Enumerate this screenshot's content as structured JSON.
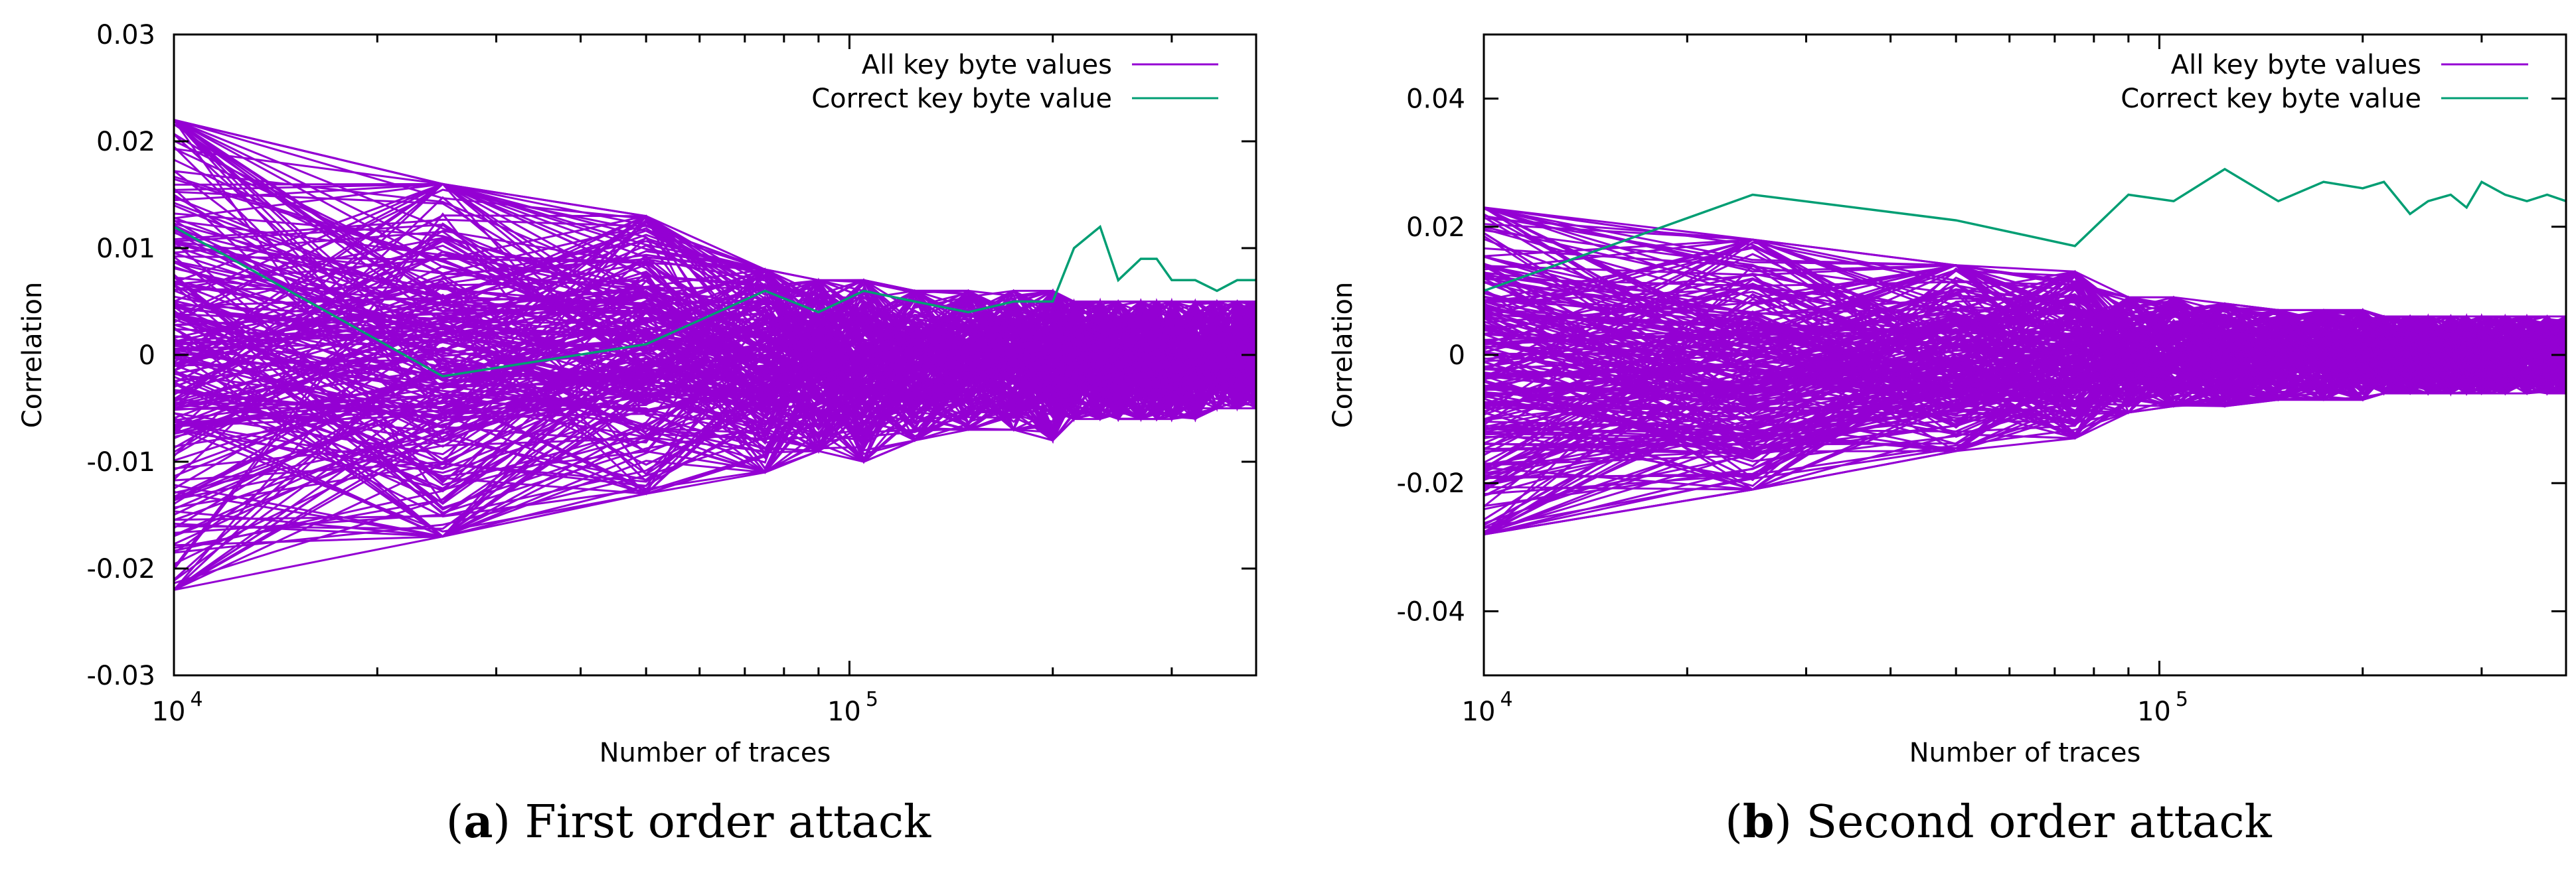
{
  "chart_data": [
    {
      "type": "line",
      "xscale": "log",
      "xlim": [
        10000,
        400000
      ],
      "ylim": [
        -0.03,
        0.03
      ],
      "yticks": [
        -0.03,
        -0.02,
        -0.01,
        0,
        0.01,
        0.02,
        0.03
      ],
      "ytick_labels": [
        "-0.03",
        "-0.02",
        "-0.01",
        "0",
        "0.01",
        "0.02",
        "0.03"
      ],
      "xticks_major": [
        10000,
        100000
      ],
      "xtick_labels": [
        {
          "base": "10",
          "exp": "4"
        },
        {
          "base": "10",
          "exp": "5"
        }
      ],
      "xlabel": "Number of traces",
      "ylabel": "Correlation",
      "caption_letter": "a",
      "caption_text": "First order attack",
      "x": [
        10000,
        25000,
        50000,
        75000,
        90000,
        105000,
        125000,
        150000,
        175000,
        200000,
        215000,
        235000,
        250000,
        270000,
        285000,
        300000,
        325000,
        350000,
        375000,
        400000
      ],
      "series": [
        {
          "name": "All key byte values",
          "color": "#9400d3",
          "n_lines": 255,
          "envelope_upper": [
            0.022,
            0.016,
            0.013,
            0.008,
            0.007,
            0.007,
            0.006,
            0.006,
            0.006,
            0.006,
            0.005,
            0.005,
            0.005,
            0.005,
            0.005,
            0.005,
            0.005,
            0.005,
            0.005,
            0.005
          ],
          "envelope_lower": [
            -0.022,
            -0.017,
            -0.013,
            -0.011,
            -0.009,
            -0.01,
            -0.008,
            -0.007,
            -0.007,
            -0.008,
            -0.006,
            -0.006,
            -0.006,
            -0.006,
            -0.006,
            -0.006,
            -0.006,
            -0.005,
            -0.005,
            -0.005
          ]
        },
        {
          "name": "Correct key byte value",
          "color": "#009e73",
          "values": [
            0.012,
            -0.002,
            0.001,
            0.006,
            0.004,
            0.006,
            0.005,
            0.004,
            0.005,
            0.005,
            0.01,
            0.012,
            0.007,
            0.009,
            0.009,
            0.007,
            0.007,
            0.006,
            0.007,
            0.007
          ]
        }
      ]
    },
    {
      "type": "line",
      "xscale": "log",
      "xlim": [
        10000,
        400000
      ],
      "ylim": [
        -0.05,
        0.05
      ],
      "yticks": [
        -0.04,
        -0.02,
        0,
        0.02,
        0.04
      ],
      "ytick_labels": [
        "-0.04",
        "-0.02",
        "0",
        "0.02",
        "0.04"
      ],
      "xticks_major": [
        10000,
        100000
      ],
      "xtick_labels": [
        {
          "base": "10",
          "exp": "4"
        },
        {
          "base": "10",
          "exp": "5"
        }
      ],
      "xlabel": "Number of traces",
      "ylabel": "Correlation",
      "caption_letter": "b",
      "caption_text": "Second order attack",
      "x": [
        10000,
        25000,
        50000,
        75000,
        90000,
        105000,
        125000,
        150000,
        175000,
        200000,
        215000,
        235000,
        250000,
        270000,
        285000,
        300000,
        325000,
        350000,
        375000,
        400000
      ],
      "series": [
        {
          "name": "All key byte values",
          "color": "#9400d3",
          "n_lines": 255,
          "envelope_upper": [
            0.023,
            0.018,
            0.014,
            0.013,
            0.009,
            0.009,
            0.008,
            0.007,
            0.007,
            0.007,
            0.006,
            0.006,
            0.006,
            0.006,
            0.006,
            0.006,
            0.006,
            0.006,
            0.006,
            0.006
          ],
          "envelope_lower": [
            -0.028,
            -0.021,
            -0.015,
            -0.013,
            -0.009,
            -0.008,
            -0.008,
            -0.007,
            -0.007,
            -0.007,
            -0.006,
            -0.006,
            -0.006,
            -0.006,
            -0.006,
            -0.006,
            -0.006,
            -0.006,
            -0.006,
            -0.006
          ]
        },
        {
          "name": "Correct key byte value",
          "color": "#009e73",
          "values": [
            0.01,
            0.025,
            0.021,
            0.017,
            0.025,
            0.024,
            0.029,
            0.024,
            0.027,
            0.026,
            0.027,
            0.022,
            0.024,
            0.025,
            0.023,
            0.027,
            0.025,
            0.024,
            0.025,
            0.024
          ]
        }
      ]
    }
  ]
}
